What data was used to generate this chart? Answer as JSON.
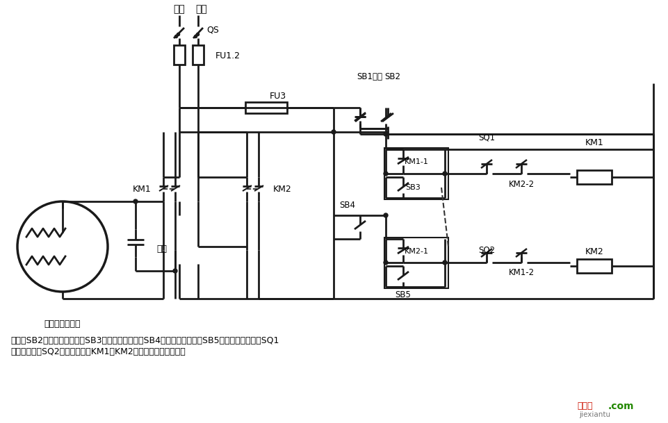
{
  "bg_color": "#ffffff",
  "line_color": "#1a1a1a",
  "lw": 2.0,
  "lw_thin": 1.5,
  "label_huoxian": "火线",
  "label_lingxian": "零线",
  "label_QS": "QS",
  "label_FU12": "FU1.2",
  "label_FU3": "FU3",
  "label_SB1": "SB1停止",
  "label_SB2": "SB2",
  "label_SB3": "SB3",
  "label_SB4": "SB4",
  "label_SB5": "SB5",
  "label_KM1_1": "KM1-1",
  "label_KM2_1": "KM2-1",
  "label_KM1_2": "KM1-2",
  "label_KM2_2": "KM2-2",
  "label_KM1_coil": "KM1",
  "label_KM2_coil": "KM2",
  "label_KM1_sw": "KM1",
  "label_KM2_sw": "KM2",
  "label_SQ1": "SQ1",
  "label_SQ2": "SQ2",
  "label_capacitor": "电容",
  "label_motor": "单相电容电动机",
  "note_line1": "说明：SB2为上升启动按鈕，SB3为上升点动按鈕，SB4为下降启动按鈕，SB5为下降点动按鈕；SQ1",
  "note_line2": "为最高限位，SQ2为最低限位。KM1、KM2可用中间继电器代替。",
  "wm1": "接线图",
  "wm2": ".com",
  "wm3": "jiexiantu"
}
